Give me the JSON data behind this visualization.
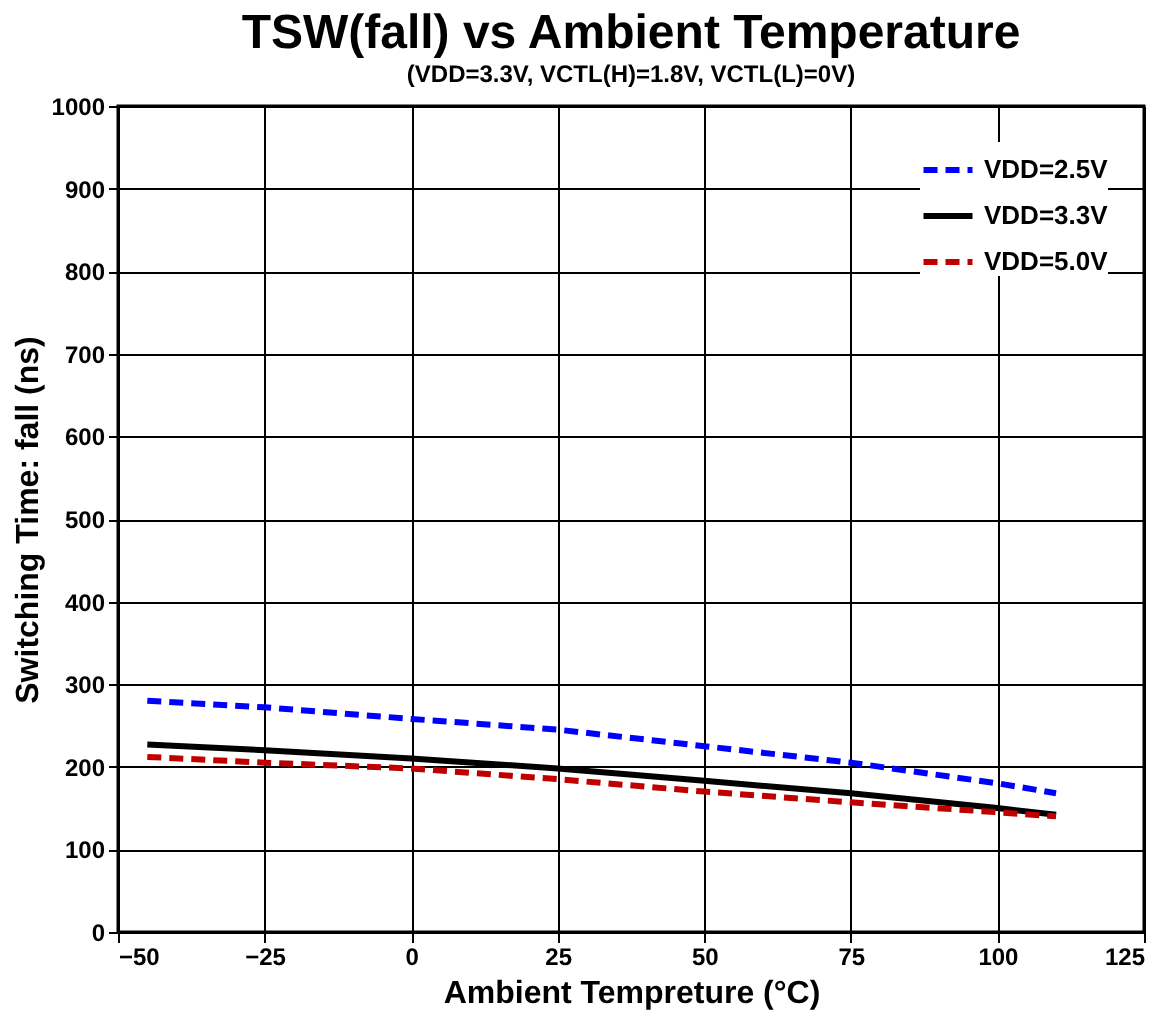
{
  "chart_data": {
    "type": "line",
    "title": "TSW(fall) vs Ambient Temperature",
    "subtitle": "(VDD=3.3V, VCTL(H)=1.8V, VCTL(L)=0V)",
    "xlabel": "Ambient Tempreture (°C)",
    "ylabel": "Switching Time: fall  (ns)",
    "x": [
      -45,
      -25,
      0,
      25,
      50,
      75,
      100,
      110
    ],
    "series": [
      {
        "name": "VDD=2.5V",
        "color": "#0000ff",
        "line_style": "dashed",
        "values": [
          280,
          272,
          258,
          245,
          225,
          205,
          180,
          168
        ]
      },
      {
        "name": "VDD=3.3V",
        "color": "#000000",
        "line_style": "solid",
        "values": [
          227,
          220,
          210,
          198,
          183,
          168,
          150,
          142
        ]
      },
      {
        "name": "VDD=5.0V",
        "color": "#c00000",
        "line_style": "dashed",
        "values": [
          212,
          205,
          198,
          185,
          170,
          157,
          145,
          140
        ]
      }
    ],
    "xlim": [
      -50,
      125
    ],
    "xticks": [
      -50,
      -25,
      0,
      25,
      50,
      75,
      100,
      125
    ],
    "ylim": [
      0,
      1000
    ],
    "yticks": [
      0,
      100,
      200,
      300,
      400,
      500,
      600,
      700,
      800,
      900,
      1000
    ],
    "grid": true,
    "legend": "top right",
    "marker": "none"
  }
}
